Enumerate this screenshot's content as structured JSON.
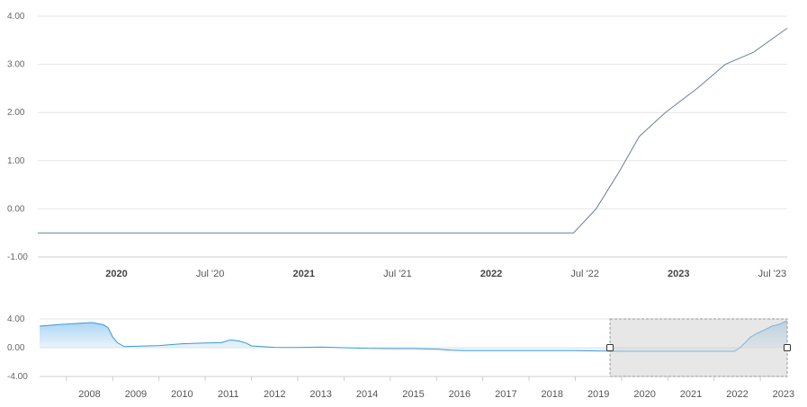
{
  "chart_data": [
    {
      "type": "line",
      "ylim": [
        -1,
        4
      ],
      "yticks": [
        "4.00",
        "3.00",
        "2.00",
        "1.00",
        "0.00",
        "-1.00"
      ],
      "xlim": [
        2019.58,
        2023.58
      ],
      "xticks": [
        {
          "x": 2020.0,
          "label": "2020",
          "bold": true
        },
        {
          "x": 2020.5,
          "label": "Jul '20",
          "bold": false
        },
        {
          "x": 2021.0,
          "label": "2021",
          "bold": true
        },
        {
          "x": 2021.5,
          "label": "Jul '21",
          "bold": false
        },
        {
          "x": 2022.0,
          "label": "2022",
          "bold": true
        },
        {
          "x": 2022.5,
          "label": "Jul '22",
          "bold": false
        },
        {
          "x": 2023.0,
          "label": "2023",
          "bold": true
        },
        {
          "x": 2023.5,
          "label": "Jul '23",
          "bold": false
        }
      ],
      "grid": true,
      "line_color": "#6e7f9a",
      "series": [
        {
          "x": [
            2019.58,
            2022.44,
            2022.56,
            2022.68,
            2022.79,
            2022.93,
            2023.1,
            2023.25,
            2023.4,
            2023.58
          ],
          "values": [
            -0.5,
            -0.5,
            0.0,
            0.75,
            1.5,
            2.0,
            2.5,
            3.0,
            3.25,
            3.75
          ]
        }
      ]
    },
    {
      "type": "area",
      "ylim": [
        -4,
        4
      ],
      "yticks": [
        "4.00",
        "0.00",
        "-4.00"
      ],
      "xlim": [
        2007.42,
        2023.58
      ],
      "xticks": [
        "2008",
        "2009",
        "2010",
        "2011",
        "2012",
        "2013",
        "2014",
        "2015",
        "2016",
        "2017",
        "2018",
        "2019",
        "2020",
        "2021",
        "2022",
        "2023"
      ],
      "line_color": "#3a9ad9",
      "fill_color": "#a9d4f5",
      "selected_range": [
        2019.75,
        2023.58
      ],
      "series": [
        {
          "x": [
            2007.42,
            2007.8,
            2008.3,
            2008.55,
            2008.8,
            2008.9,
            2009.0,
            2009.1,
            2009.25,
            2010.0,
            2010.5,
            2011.0,
            2011.35,
            2011.55,
            2011.75,
            2011.9,
            2012.0,
            2012.5,
            2013.0,
            2013.5,
            2014.0,
            2014.5,
            2015.0,
            2015.5,
            2016.0,
            2016.3,
            2016.6,
            2017.0,
            2018.0,
            2019.0,
            2019.5,
            2020.0,
            2021.0,
            2022.0,
            2022.44,
            2022.56,
            2022.68,
            2022.79,
            2022.93,
            2023.1,
            2023.25,
            2023.4,
            2023.58
          ],
          "values": [
            3.0,
            3.2,
            3.4,
            3.5,
            3.2,
            2.8,
            1.5,
            0.7,
            0.15,
            0.3,
            0.55,
            0.65,
            0.7,
            1.1,
            0.9,
            0.6,
            0.25,
            0.05,
            0.02,
            0.1,
            0.0,
            -0.1,
            -0.12,
            -0.13,
            -0.2,
            -0.35,
            -0.4,
            -0.4,
            -0.4,
            -0.4,
            -0.45,
            -0.5,
            -0.5,
            -0.5,
            -0.5,
            0.0,
            0.75,
            1.5,
            2.0,
            2.5,
            3.0,
            3.25,
            3.75
          ]
        }
      ]
    }
  ]
}
